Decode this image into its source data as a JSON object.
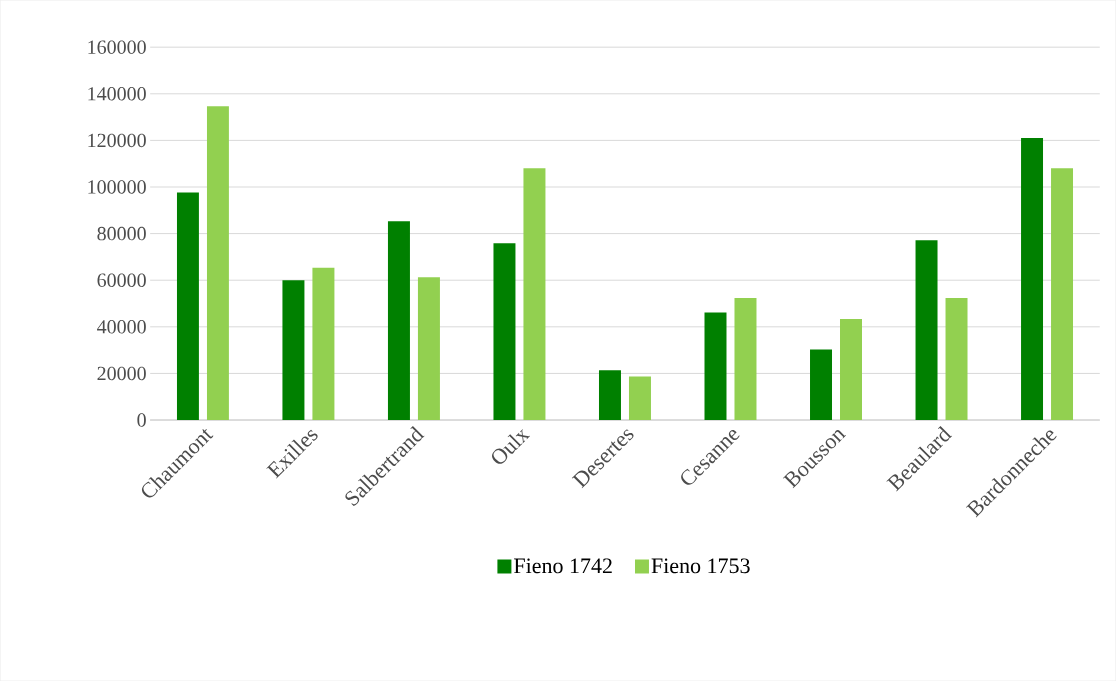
{
  "chart_data": {
    "type": "bar",
    "categories": [
      "Chaumont",
      "Exilles",
      "Salbertrand",
      "Oulx",
      "Desertes",
      "Cesanne",
      "Bousson",
      "Beaulard",
      "Bardonneche"
    ],
    "series": [
      {
        "name": "Fieno 1742",
        "color": "#008000",
        "values": [
          97600,
          60000,
          85300,
          75900,
          21400,
          46100,
          30300,
          77100,
          121000
        ]
      },
      {
        "name": "Fieno 1753",
        "color": "#92d050",
        "values": [
          134700,
          65400,
          61300,
          108000,
          18700,
          52400,
          43400,
          52400,
          108000
        ]
      }
    ],
    "ylim": [
      0,
      160000
    ],
    "yticks": [
      0,
      20000,
      40000,
      60000,
      80000,
      100000,
      120000,
      140000,
      160000
    ],
    "grid": "y",
    "legend": "bottom"
  }
}
